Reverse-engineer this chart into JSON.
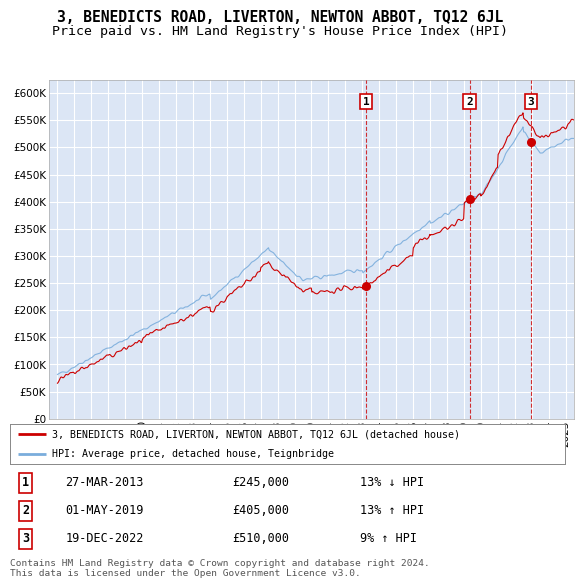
{
  "title": "3, BENEDICTS ROAD, LIVERTON, NEWTON ABBOT, TQ12 6JL",
  "subtitle": "Price paid vs. HM Land Registry's House Price Index (HPI)",
  "xlim_start": 1994.5,
  "xlim_end": 2025.5,
  "ylim_min": 0,
  "ylim_max": 625000,
  "yticks": [
    0,
    50000,
    100000,
    150000,
    200000,
    250000,
    300000,
    350000,
    400000,
    450000,
    500000,
    550000,
    600000
  ],
  "ytick_labels": [
    "£0",
    "£50K",
    "£100K",
    "£150K",
    "£200K",
    "£250K",
    "£300K",
    "£350K",
    "£400K",
    "£450K",
    "£500K",
    "£550K",
    "£600K"
  ],
  "xticks": [
    1995,
    1996,
    1997,
    1998,
    1999,
    2000,
    2001,
    2002,
    2003,
    2004,
    2005,
    2006,
    2007,
    2008,
    2009,
    2010,
    2011,
    2012,
    2013,
    2014,
    2015,
    2016,
    2017,
    2018,
    2019,
    2020,
    2021,
    2022,
    2023,
    2024,
    2025
  ],
  "plot_bg_color": "#dce6f5",
  "grid_color": "#ffffff",
  "red_line_color": "#cc0000",
  "blue_line_color": "#7aaddc",
  "purchases": [
    {
      "year": 2013.23,
      "price": 245000,
      "label": "1"
    },
    {
      "year": 2019.33,
      "price": 405000,
      "label": "2"
    },
    {
      "year": 2022.97,
      "price": 510000,
      "label": "3"
    }
  ],
  "table_rows": [
    {
      "num": "1",
      "date": "27-MAR-2013",
      "price": "£245,000",
      "change": "13% ↓ HPI"
    },
    {
      "num": "2",
      "date": "01-MAY-2019",
      "price": "£405,000",
      "change": "13% ↑ HPI"
    },
    {
      "num": "3",
      "date": "19-DEC-2022",
      "price": "£510,000",
      "change": "9% ↑ HPI"
    }
  ],
  "legend_entries": [
    "3, BENEDICTS ROAD, LIVERTON, NEWTON ABBOT, TQ12 6JL (detached house)",
    "HPI: Average price, detached house, Teignbridge"
  ],
  "footer": "Contains HM Land Registry data © Crown copyright and database right 2024.\nThis data is licensed under the Open Government Licence v3.0.",
  "title_fontsize": 10.5,
  "subtitle_fontsize": 9.5,
  "tick_fontsize": 7.5
}
